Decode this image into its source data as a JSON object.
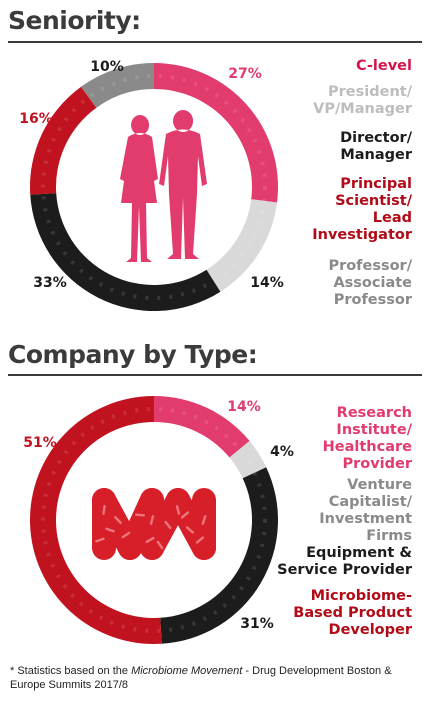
{
  "colors": {
    "pink": "#e23b6e",
    "light_gray": "#d9d9d9",
    "black": "#1c1c1c",
    "red": "#c1121f",
    "mid_gray": "#8a8a8a",
    "dark_red": "#b10b17"
  },
  "icons": {
    "chart_1_center": "people-silhouette-icon",
    "chart_2_center": "microbiome-logo-icon"
  },
  "chart_data": [
    {
      "type": "pie",
      "title": "Seniority:",
      "slices": [
        {
          "label": "C-level",
          "value": 27,
          "label_text": "27%",
          "color": "#e23b6e",
          "legend_color": "#d4144a"
        },
        {
          "label": "President/ VP/Manager",
          "value": 14,
          "label_text": "14%",
          "color": "#d9d9d9",
          "legend_color": "#bdbdbd"
        },
        {
          "label": "Director/ Manager",
          "value": 33,
          "label_text": "33%",
          "color": "#1c1c1c",
          "legend_color": "#1c1c1c"
        },
        {
          "label": "Principal Scientist/ Lead Investigator",
          "value": 16,
          "label_text": "16%",
          "color": "#c1121f",
          "legend_color": "#b10b17"
        },
        {
          "label": "Professor/ Associate Professor",
          "value": 10,
          "label_text": "10%",
          "color": "#8a8a8a",
          "legend_color": "#8a8a8a"
        }
      ]
    },
    {
      "type": "pie",
      "title": "Company by Type:",
      "slices": [
        {
          "label": "Research Institute/ Healthcare Provider",
          "value": 14,
          "label_text": "14%",
          "color": "#e23b6e",
          "legend_color": "#e23b6e"
        },
        {
          "label": "Venture Capitalist/ Investment Firms",
          "value": 4,
          "label_text": "4%",
          "color": "#d9d9d9",
          "legend_color": "#8a8a8a"
        },
        {
          "label": "Equipment & Service Provider",
          "value": 31,
          "label_text": "31%",
          "color": "#1c1c1c",
          "legend_color": "#1c1c1c"
        },
        {
          "label": "Microbiome- Based Product Developer",
          "value": 51,
          "label_text": "51%",
          "color": "#c1121f",
          "legend_color": "#b10b17"
        }
      ]
    }
  ],
  "legends": [
    [
      "C-level",
      "President/\nVP/Manager",
      "Director/\nManager",
      "Principal\nScientist/\nLead\nInvestigator",
      "Professor/\nAssociate\nProfessor"
    ],
    [
      "Research\nInstitute/\nHealthcare\nProvider",
      "Venture\nCapitalist/\nInvestment\nFirms",
      "Equipment &\nService Provider",
      "Microbiome-\nBased Product\nDeveloper"
    ]
  ],
  "footnote": {
    "prefix": "* Statistics based on the ",
    "emphasis": "Microbiome Movement",
    "suffix": " - Drug Development Boston & Europe Summits 2017/8"
  }
}
